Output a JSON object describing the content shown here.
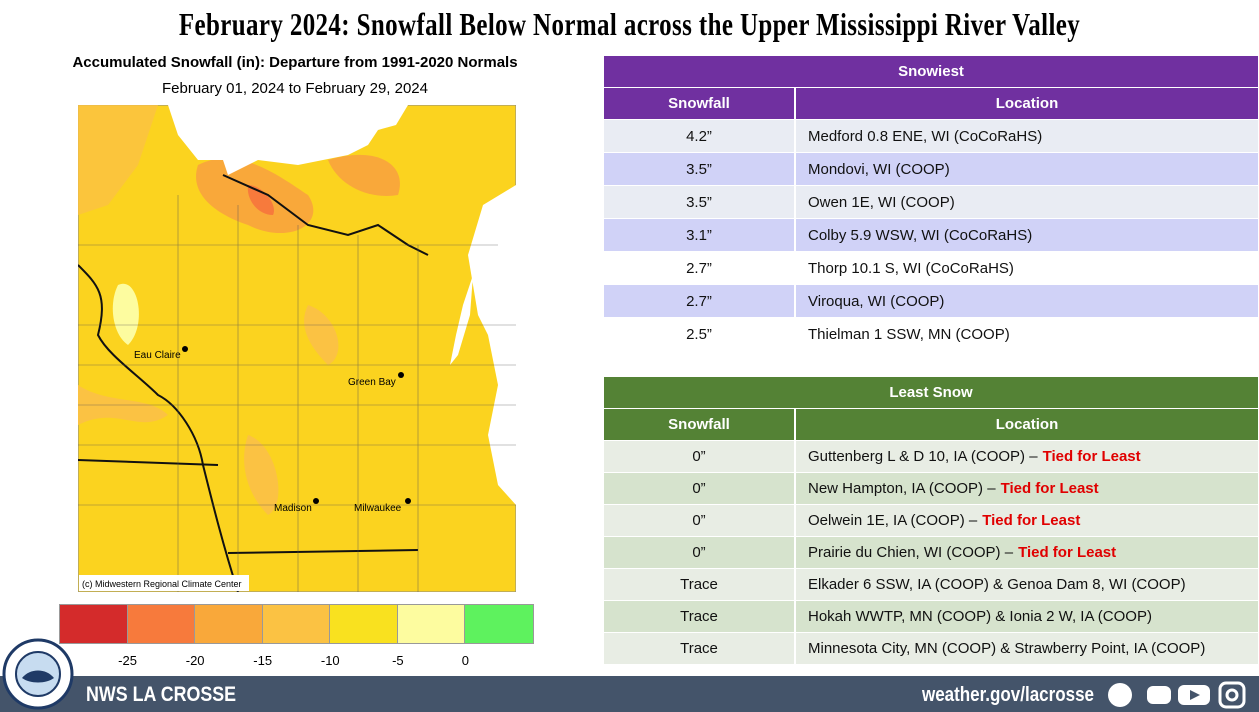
{
  "title": "February 2024:  Snowfall Below Normal across the Upper Mississippi River Valley",
  "map": {
    "title": "Accumulated Snowfall (in): Departure from 1991-2020 Normals",
    "subtitle": "February 01, 2024 to February 29, 2024",
    "credit": "(c) Midwestern Regional Climate Center",
    "cities": [
      "Eau Claire",
      "Green Bay",
      "Madison",
      "Milwaukee"
    ],
    "legend": {
      "colors": [
        "#d42b2b",
        "#f77a3c",
        "#f9a83a",
        "#fbc243",
        "#f9e11f",
        "#fdfc9f",
        "#5ef25e"
      ],
      "ticks": [
        -25,
        -20,
        -15,
        -10,
        -5,
        0
      ]
    }
  },
  "snowiest": {
    "title": "Snowiest",
    "columns": [
      "Snowfall",
      "Location"
    ],
    "rows": [
      {
        "snowfall": "4.2”",
        "location": "Medford 0.8 ENE, WI (CoCoRaHS)"
      },
      {
        "snowfall": "3.5”",
        "location": "Mondovi, WI (COOP)"
      },
      {
        "snowfall": "3.5”",
        "location": "Owen 1E, WI (COOP)"
      },
      {
        "snowfall": "3.1”",
        "location": "Colby 5.9 WSW, WI (CoCoRaHS)"
      },
      {
        "snowfall": "2.7”",
        "location": "Thorp 10.1 S, WI (CoCoRaHS)"
      },
      {
        "snowfall": "2.7”",
        "location": "Viroqua, WI (COOP)"
      },
      {
        "snowfall": "2.5”",
        "location": "Thielman 1 SSW, MN (COOP)"
      }
    ]
  },
  "least": {
    "title": "Least Snow",
    "columns": [
      "Snowfall",
      "Location"
    ],
    "rows": [
      {
        "snowfall": "0”",
        "location": "Guttenberg L & D 10, IA (COOP) –",
        "note": "Tied for Least"
      },
      {
        "snowfall": "0”",
        "location": "New Hampton, IA (COOP) –",
        "note": "Tied for Least"
      },
      {
        "snowfall": "0”",
        "location": "Oelwein 1E, IA (COOP) –",
        "note": "Tied for Least"
      },
      {
        "snowfall": "0”",
        "location": "Prairie du Chien, WI (COOP) –",
        "note": "Tied for Least"
      },
      {
        "snowfall": "Trace",
        "location": "Elkader 6 SSW, IA (COOP) & Genoa Dam 8, WI (COOP)"
      },
      {
        "snowfall": "Trace",
        "location": "Hokah WWTP, MN (COOP) & Ionia 2 W, IA (COOP)"
      },
      {
        "snowfall": "Trace",
        "location": "Minnesota City, MN (COOP) & Strawberry Point, IA (COOP)"
      }
    ]
  },
  "footer": {
    "office": "NWS LA CROSSE",
    "url": "weather.gov/lacrosse"
  }
}
